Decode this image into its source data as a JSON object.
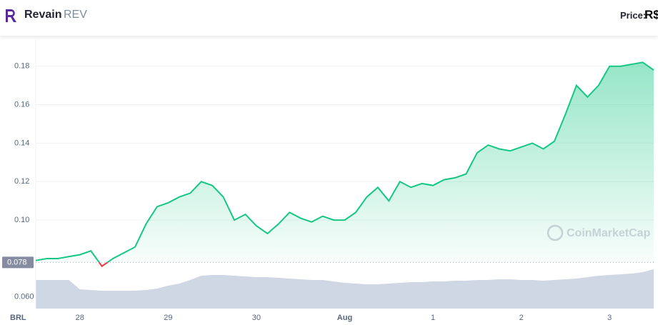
{
  "header": {
    "name": "Revain",
    "symbol": "REV",
    "price_label": "Price:",
    "currency": "R$"
  },
  "chart_data": {
    "type": "line",
    "categories": [
      null,
      null,
      null,
      null,
      "28",
      null,
      null,
      null,
      null,
      null,
      null,
      null,
      "29",
      null,
      null,
      null,
      null,
      null,
      null,
      null,
      "30",
      null,
      null,
      null,
      null,
      null,
      null,
      null,
      "Aug",
      null,
      null,
      null,
      null,
      null,
      null,
      null,
      "1",
      null,
      null,
      null,
      null,
      null,
      null,
      null,
      "2",
      null,
      null,
      null,
      null,
      null,
      null,
      null,
      "3",
      null,
      null,
      null,
      null
    ],
    "series": [
      {
        "color": "#16c784",
        "below_color": "#ea3943",
        "values": [
          0.079,
          0.08,
          0.08,
          0.081,
          0.082,
          0.084,
          0.076,
          0.08,
          0.083,
          0.086,
          0.098,
          0.107,
          0.109,
          0.112,
          0.114,
          0.12,
          0.118,
          0.112,
          0.1,
          0.103,
          0.097,
          0.093,
          0.098,
          0.104,
          0.101,
          0.099,
          0.102,
          0.1,
          0.1,
          0.104,
          0.112,
          0.117,
          0.11,
          0.12,
          0.117,
          0.119,
          0.118,
          0.121,
          0.122,
          0.124,
          0.135,
          0.139,
          0.137,
          0.136,
          0.138,
          0.14,
          0.137,
          0.141,
          0.155,
          0.17,
          0.164,
          0.17,
          0.18,
          0.18,
          0.181,
          0.182,
          0.178
        ]
      }
    ],
    "volume": {
      "color": "#cfd6e4",
      "ylim": [
        0,
        100
      ],
      "values": [
        40,
        40,
        40,
        40,
        27,
        26,
        25,
        25,
        25,
        25,
        26,
        28,
        32,
        35,
        40,
        46,
        47,
        47,
        46,
        45,
        44,
        44,
        43,
        42,
        41,
        40,
        40,
        38,
        36,
        35,
        34,
        34,
        35,
        36,
        37,
        37,
        38,
        38,
        39,
        39,
        40,
        40,
        41,
        41,
        40,
        40,
        39,
        40,
        41,
        42,
        44,
        46,
        47,
        48,
        49,
        51,
        55
      ]
    },
    "ylim": [
      0.054,
      0.194
    ],
    "yticks": [
      {
        "value": 0.06,
        "label": "0.060"
      },
      {
        "value": 0.1,
        "label": "0.10"
      },
      {
        "value": 0.12,
        "label": "0.12"
      },
      {
        "value": 0.14,
        "label": "0.14"
      },
      {
        "value": 0.16,
        "label": "0.16"
      },
      {
        "value": 0.18,
        "label": "0.18"
      }
    ],
    "reference": 0.078,
    "currency_label": "BRL",
    "watermark": "CoinMarketCap",
    "grid": true
  }
}
